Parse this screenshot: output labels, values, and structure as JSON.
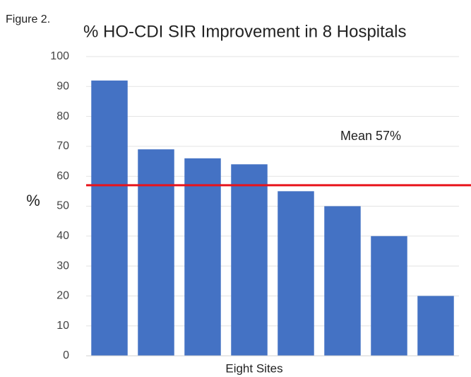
{
  "chart_data": {
    "type": "bar",
    "figure_label": "Figure 2.",
    "title": "% HO-CDI SIR Improvement in 8 Hospitals",
    "ylabel": "%",
    "xlabel": "Eight Sites",
    "categories": [
      null,
      null,
      null,
      null,
      null,
      null,
      null,
      null
    ],
    "values": [
      92,
      69,
      66,
      64,
      55,
      50,
      40,
      20
    ],
    "color": "#4472c4",
    "ylim": [
      0,
      100
    ],
    "yticks": [
      0,
      10,
      20,
      30,
      40,
      50,
      60,
      70,
      80,
      90,
      100
    ],
    "grid": true,
    "mean_line": {
      "value": 57,
      "label": "Mean 57%",
      "color": "#e8141b"
    }
  }
}
